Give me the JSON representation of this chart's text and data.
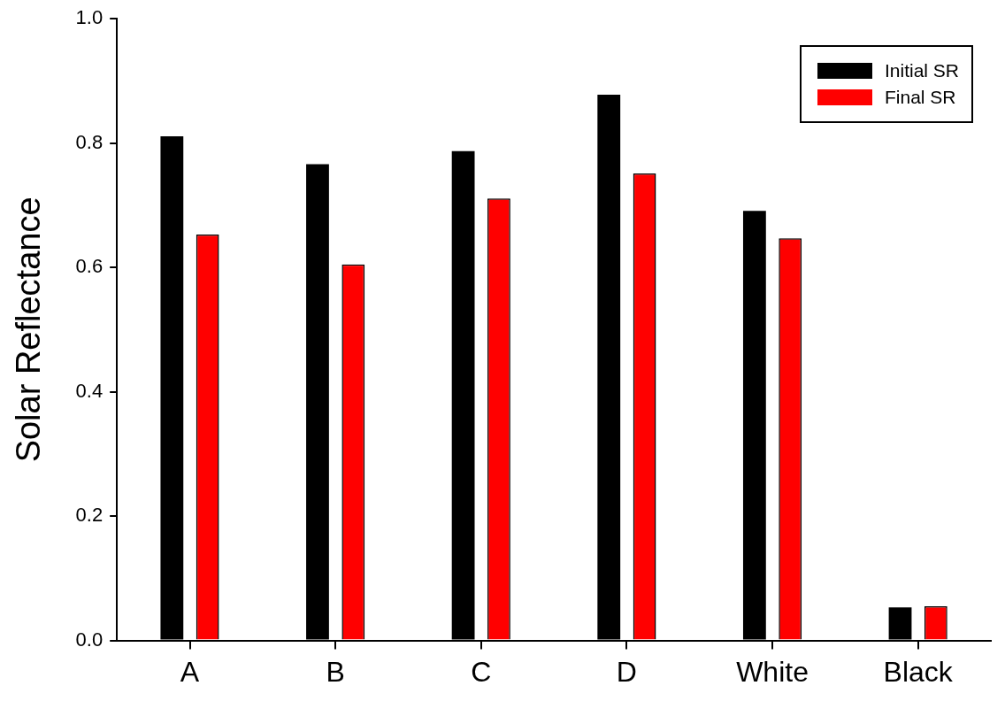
{
  "chart_data": {
    "type": "bar",
    "ylabel": "Solar Reflectance",
    "categories": [
      "A",
      "B",
      "C",
      "D",
      "White",
      "Black"
    ],
    "series": [
      {
        "name": "Initial SR",
        "color": "#000000",
        "values": [
          0.811,
          0.766,
          0.787,
          0.878,
          0.691,
          0.053
        ]
      },
      {
        "name": "Final SR",
        "color": "#ff0000",
        "values": [
          0.653,
          0.605,
          0.711,
          0.751,
          0.647,
          0.055
        ]
      }
    ],
    "ylim": [
      0,
      1
    ],
    "yticks": [
      {
        "value": 0,
        "label": "0.0"
      },
      {
        "value": 0.2,
        "label": "0.2"
      },
      {
        "value": 0.4,
        "label": "0.4"
      },
      {
        "value": 0.6,
        "label": "0.6"
      },
      {
        "value": 0.8,
        "label": "0.8"
      },
      {
        "value": 1,
        "label": "1.0"
      }
    ],
    "grid": false,
    "legend": "top right"
  }
}
